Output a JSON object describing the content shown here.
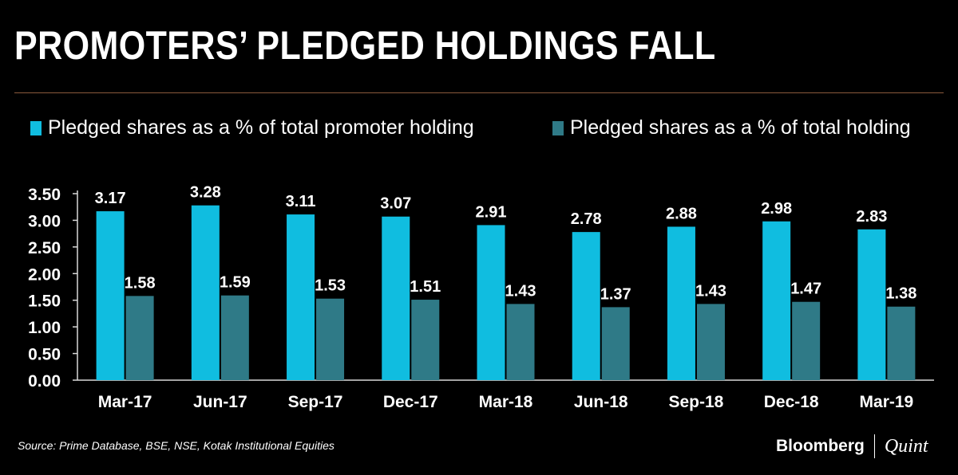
{
  "title": "PROMOTERS’ PLEDGED HOLDINGS FALL",
  "source": "Source:  Prime Database, BSE, NSE, Kotak Institutional Equities",
  "brand": {
    "name": "Bloomberg",
    "sub": "Quint"
  },
  "colors": {
    "series1": "#10bde0",
    "series2": "#2f7a87",
    "background": "#000000",
    "rule": "#8a5a3c"
  },
  "chart_data": {
    "type": "bar",
    "title": "PROMOTERS’ PLEDGED HOLDINGS FALL",
    "categories": [
      "Mar-17",
      "Jun-17",
      "Sep-17",
      "Dec-17",
      "Mar-18",
      "Jun-18",
      "Sep-18",
      "Dec-18",
      "Mar-19"
    ],
    "series": [
      {
        "name": "Pledged shares as a % of total promoter holding",
        "values": [
          3.17,
          3.28,
          3.11,
          3.07,
          2.91,
          2.78,
          2.88,
          2.98,
          2.83
        ],
        "labels": [
          "3.17",
          "3.28",
          "3.11",
          "3.07",
          "2.91",
          "2.78",
          "2.88",
          "2.98",
          "2.83"
        ]
      },
      {
        "name": "Pledged shares as a % of total holding",
        "values": [
          1.58,
          1.59,
          1.53,
          1.51,
          1.43,
          1.37,
          1.43,
          1.47,
          1.38
        ],
        "labels": [
          "1.58",
          "1.59",
          "1.53",
          "1.51",
          "1.43",
          "1.37",
          "1.43",
          "1.47",
          "1.38"
        ]
      }
    ],
    "yticks": [
      "0.00",
      "0.50",
      "1.00",
      "1.50",
      "2.00",
      "2.50",
      "3.00",
      "3.50"
    ],
    "ylim": [
      0,
      3.5
    ],
    "grid": false,
    "legend": "top"
  }
}
